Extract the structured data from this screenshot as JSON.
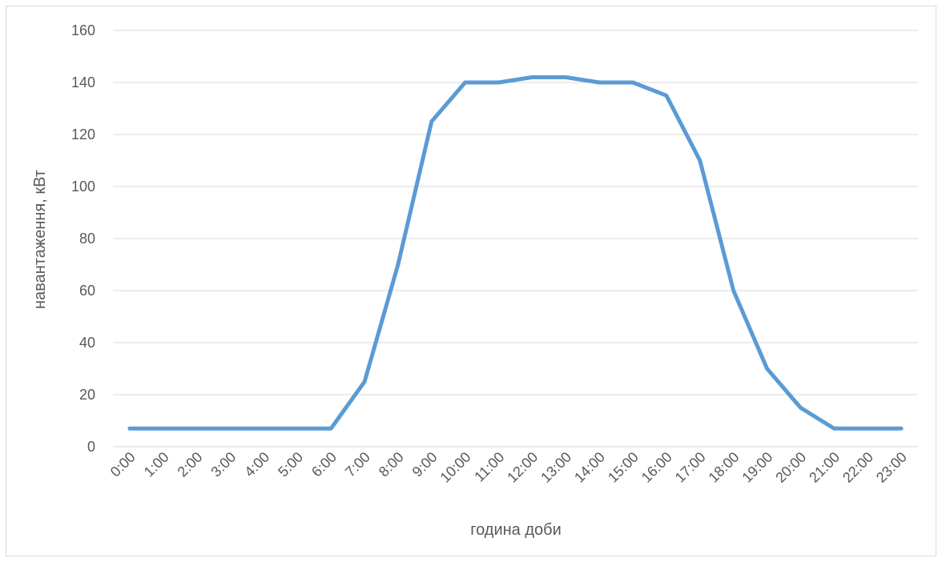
{
  "chart_data": {
    "type": "line",
    "title": "",
    "xlabel": "година доби",
    "ylabel": "навантаження, кВт",
    "ylim": [
      0,
      160
    ],
    "yticks": [
      0,
      20,
      40,
      60,
      80,
      100,
      120,
      140,
      160
    ],
    "grid": true,
    "legend": "none",
    "categories": [
      "0:00",
      "1:00",
      "2:00",
      "3:00",
      "4:00",
      "5:00",
      "6:00",
      "7:00",
      "8:00",
      "9:00",
      "10:00",
      "11:00",
      "12:00",
      "13:00",
      "14:00",
      "15:00",
      "16:00",
      "17:00",
      "18:00",
      "19:00",
      "20:00",
      "21:00",
      "22:00",
      "23:00"
    ],
    "series": [
      {
        "color": "#5b9bd5",
        "values": [
          7,
          7,
          7,
          7,
          7,
          7,
          7,
          25,
          70,
          125,
          140,
          140,
          142,
          142,
          140,
          140,
          135,
          110,
          60,
          30,
          15,
          7,
          7,
          7
        ]
      }
    ]
  }
}
